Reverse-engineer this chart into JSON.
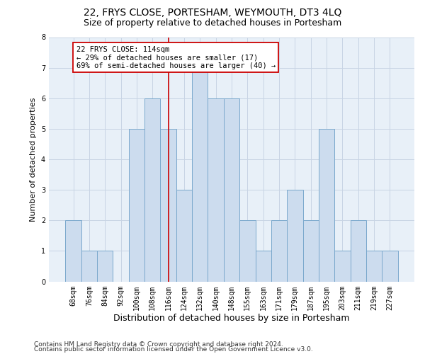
{
  "title": "22, FRYS CLOSE, PORTESHAM, WEYMOUTH, DT3 4LQ",
  "subtitle": "Size of property relative to detached houses in Portesham",
  "xlabel": "Distribution of detached houses by size in Portesham",
  "ylabel": "Number of detached properties",
  "bar_labels": [
    "68sqm",
    "76sqm",
    "84sqm",
    "92sqm",
    "100sqm",
    "108sqm",
    "116sqm",
    "124sqm",
    "132sqm",
    "140sqm",
    "148sqm",
    "155sqm",
    "163sqm",
    "171sqm",
    "179sqm",
    "187sqm",
    "195sqm",
    "203sqm",
    "211sqm",
    "219sqm",
    "227sqm"
  ],
  "bar_values": [
    2,
    1,
    1,
    0,
    5,
    6,
    5,
    3,
    7,
    6,
    6,
    2,
    1,
    2,
    3,
    2,
    5,
    1,
    2,
    1,
    1
  ],
  "bar_color": "#ccdcee",
  "bar_edge_color": "#7aa8cc",
  "highlight_index": 6,
  "highlight_line_color": "#cc0000",
  "annotation_text": "22 FRYS CLOSE: 114sqm\n← 29% of detached houses are smaller (17)\n69% of semi-detached houses are larger (40) →",
  "annotation_box_color": "#cc0000",
  "ylim": [
    0,
    8
  ],
  "yticks": [
    0,
    1,
    2,
    3,
    4,
    5,
    6,
    7,
    8
  ],
  "background_color": "#ffffff",
  "axes_bg_color": "#e8f0f8",
  "grid_color": "#c8d4e4",
  "footer_line1": "Contains HM Land Registry data © Crown copyright and database right 2024.",
  "footer_line2": "Contains public sector information licensed under the Open Government Licence v3.0.",
  "title_fontsize": 10,
  "subtitle_fontsize": 9,
  "xlabel_fontsize": 9,
  "ylabel_fontsize": 8,
  "tick_fontsize": 7,
  "annotation_fontsize": 7.5,
  "footer_fontsize": 6.5
}
